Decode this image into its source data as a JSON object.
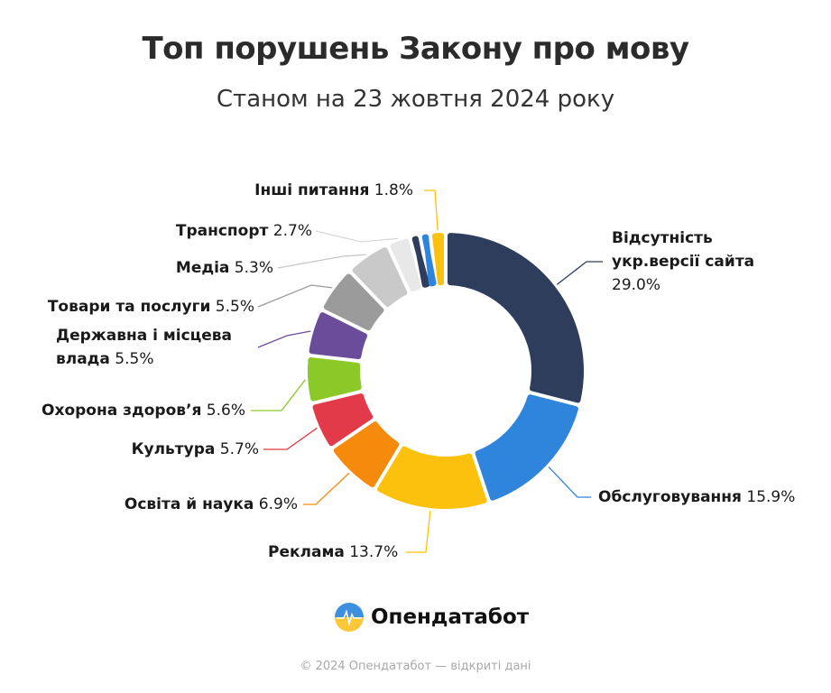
{
  "chart_data": {
    "type": "donut",
    "title": "Топ порушень Закону про мову",
    "subtitle": "Станом на 23 жовтня 2024 року",
    "unit": "%",
    "slices": [
      {
        "label": "Відсутність укр.версії сайта",
        "label_lines": [
          "Відсутність",
          "укр.версії сайта"
        ],
        "value": 29.0,
        "value_text": "29.0%",
        "color": "#2e3d5c"
      },
      {
        "label": "Обслуговування",
        "value": 15.9,
        "value_text": "15.9%",
        "color": "#2f84dc"
      },
      {
        "label": "Реклама",
        "value": 13.7,
        "value_text": "13.7%",
        "color": "#fcc10c"
      },
      {
        "label": "Освіта й наука",
        "value": 6.9,
        "value_text": "6.9%",
        "color": "#f68a0c"
      },
      {
        "label": "Культура",
        "value": 5.7,
        "value_text": "5.7%",
        "color": "#e23a48"
      },
      {
        "label": "Охорона здоров’я",
        "value": 5.6,
        "value_text": "5.6%",
        "color": "#8bc928"
      },
      {
        "label": "Державна і місцева влада",
        "label_lines": [
          "Державна і місцева",
          "влада"
        ],
        "value": 5.5,
        "value_text": "5.5%",
        "color": "#6b4c9a"
      },
      {
        "label": "Товари та послуги",
        "value": 5.5,
        "value_text": "5.5%",
        "color": "#9b9b9b"
      },
      {
        "label": "Медіа",
        "value": 5.3,
        "value_text": "5.3%",
        "color": "#c9c9c9"
      },
      {
        "label": "Транспорт",
        "value": 2.7,
        "value_text": "2.7%",
        "color": "#e8e8e8"
      },
      {
        "label": "",
        "value": 1.2,
        "color": "#2e3d5c"
      },
      {
        "label": "",
        "value": 1.2,
        "color": "#2f84dc"
      },
      {
        "label": "Інші питання",
        "value": 1.8,
        "value_text": "1.8%",
        "color": "#fcc10c"
      }
    ]
  },
  "branding": {
    "logo_text": "Опендатабот",
    "logo_icon": "heartbeat-circle-icon"
  },
  "footer": "© 2024 Опендатабот — відкриті дані"
}
